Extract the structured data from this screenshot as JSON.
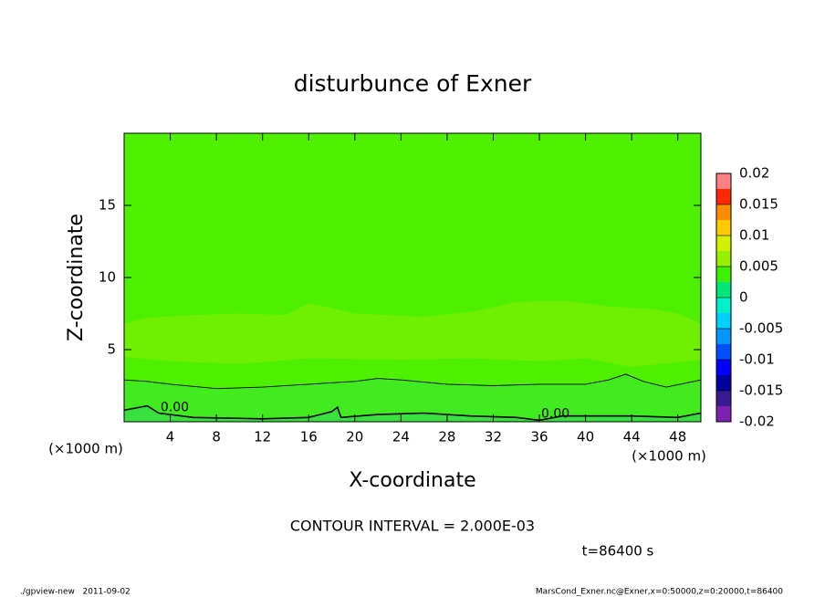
{
  "chart_data": {
    "type": "contour",
    "title": "disturbunce of Exner",
    "xlabel": "X-coordinate",
    "ylabel": "Z-coordinate",
    "xunit": "(×1000 m)",
    "yunit": "(×1000 m)",
    "xlim": [
      0,
      50
    ],
    "ylim": [
      0,
      20
    ],
    "xticks": [
      4,
      8,
      12,
      16,
      20,
      24,
      28,
      32,
      36,
      40,
      44,
      48
    ],
    "yticks": [
      5,
      10,
      15
    ],
    "plot_color": "#4ef000",
    "regions": [
      {
        "color": "#6ef000",
        "x": [
          0,
          2,
          6,
          10,
          14,
          16,
          18,
          20,
          26,
          30,
          34,
          38,
          42,
          46,
          48,
          50,
          50,
          44,
          40,
          36,
          30,
          24,
          16,
          10,
          4,
          0
        ],
        "z": [
          6.8,
          7.2,
          7.4,
          7.5,
          7.4,
          8.2,
          7.9,
          7.5,
          7.3,
          7.6,
          8.3,
          8.4,
          8.0,
          7.8,
          7.5,
          6.8,
          4.3,
          3.8,
          4.4,
          4.2,
          4.4,
          4.3,
          4.4,
          4.0,
          4.2,
          4.5
        ]
      }
    ],
    "contour_lines": [
      {
        "fill": "#42ea20",
        "x": [
          0,
          2,
          4,
          8,
          12,
          16,
          20,
          22,
          24,
          28,
          32,
          36,
          40,
          42,
          43.5,
          45,
          47,
          50
        ],
        "z": [
          2.9,
          2.8,
          2.6,
          2.3,
          2.4,
          2.6,
          2.8,
          3.0,
          2.9,
          2.6,
          2.5,
          2.6,
          2.6,
          2.9,
          3.3,
          2.8,
          2.4,
          2.9
        ]
      },
      {
        "fill": "#38e040",
        "label": "0.00",
        "x": [
          0,
          2,
          3,
          6,
          12,
          16,
          18,
          18.5,
          18.8,
          22,
          26,
          30,
          34,
          36,
          38,
          44,
          48,
          50
        ],
        "z": [
          0.8,
          1.1,
          0.6,
          0.3,
          0.2,
          0.3,
          0.7,
          1.0,
          0.3,
          0.5,
          0.6,
          0.4,
          0.3,
          0.1,
          0.4,
          0.4,
          0.3,
          0.6
        ]
      }
    ],
    "colorbar": {
      "levels": [
        -0.02,
        -0.0175,
        -0.015,
        -0.0125,
        -0.01,
        -0.0075,
        -0.005,
        -0.0025,
        0,
        0.0025,
        0.005,
        0.0075,
        0.01,
        0.0125,
        0.015,
        0.0175,
        0.02
      ],
      "colors": [
        "#8020b0",
        "#3a1a90",
        "#0000a0",
        "#0000ff",
        "#0050ff",
        "#0096ff",
        "#00d0ff",
        "#00f0c8",
        "#00e678",
        "#3cf000",
        "#96f000",
        "#d2f000",
        "#ffc800",
        "#ff8c00",
        "#ff2800",
        "#ff8080"
      ],
      "ticks": [
        -0.02,
        -0.015,
        -0.01,
        -0.005,
        0,
        0.005,
        0.01,
        0.015,
        0.02
      ]
    },
    "annotations": {
      "contour_interval": "CONTOUR INTERVAL = 2.000E-03",
      "time": "t=86400 s",
      "footer_left": "./gpview-new   2011-09-02",
      "footer_right": "MarsCond_Exner.nc@Exner,x=0:50000,z=0:20000,t=86400"
    }
  }
}
